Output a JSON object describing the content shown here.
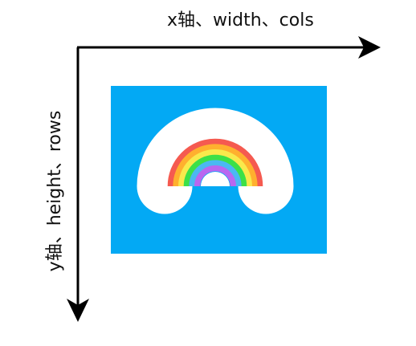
{
  "x_axis": {
    "label": "x轴、width、cols"
  },
  "y_axis": {
    "label": "y轴、height、rows"
  },
  "image": {
    "background_color": "#03A9F4",
    "content_icon": "rainbow-icon",
    "rainbow_colors": [
      "#F55A50",
      "#FFB02E",
      "#F9E94C",
      "#3CE047",
      "#4BB8F2",
      "#B967F0"
    ],
    "outline_color": "#FFFFFF"
  }
}
